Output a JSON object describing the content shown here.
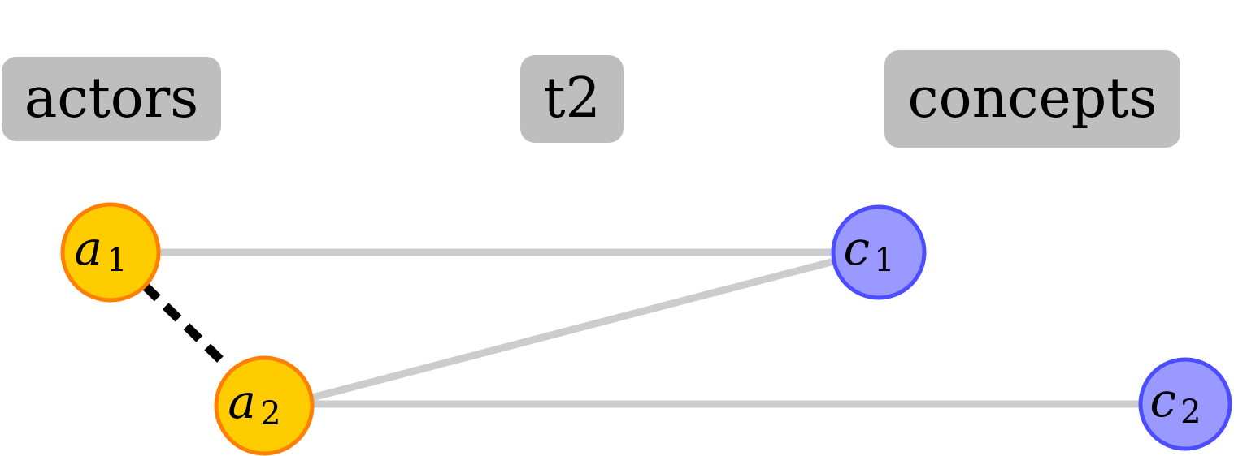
{
  "headers": {
    "actors": "actors",
    "time": "t2",
    "concepts": "concepts"
  },
  "nodes": {
    "a1": {
      "letter": "a",
      "sub": "1",
      "fill": "#ffcc00",
      "stroke": "#ff8000"
    },
    "a2": {
      "letter": "a",
      "sub": "2",
      "fill": "#ffcc00",
      "stroke": "#ff8000"
    },
    "c1": {
      "letter": "c",
      "sub": "1",
      "fill": "#9999ff",
      "stroke": "#4d4dff"
    },
    "c2": {
      "letter": "c",
      "sub": "2",
      "fill": "#9999ff",
      "stroke": "#4d4dff"
    }
  },
  "edges": [
    {
      "from": "a1",
      "to": "c1",
      "style": "solid",
      "color": "#cccccc"
    },
    {
      "from": "a2",
      "to": "c1",
      "style": "solid",
      "color": "#cccccc"
    },
    {
      "from": "a2",
      "to": "c2",
      "style": "solid",
      "color": "#cccccc"
    },
    {
      "from": "a1",
      "to": "a2",
      "style": "dashed",
      "color": "#000000"
    }
  ]
}
